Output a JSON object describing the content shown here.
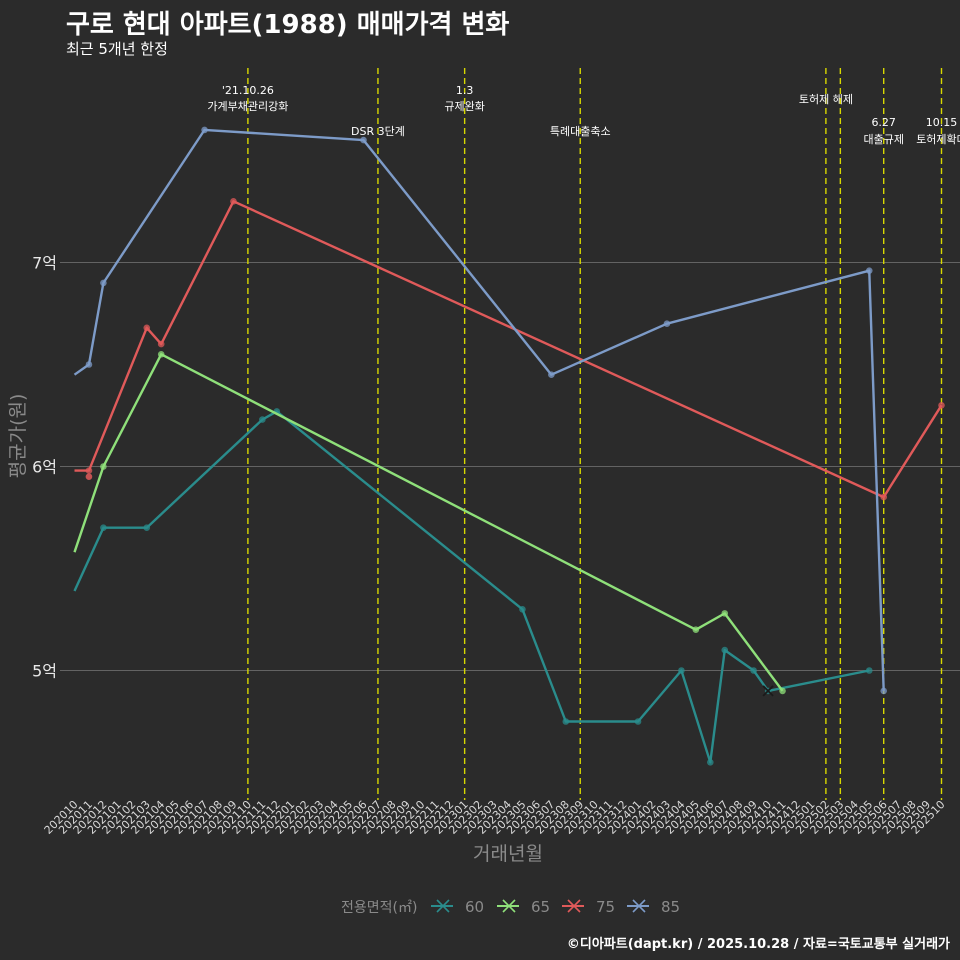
{
  "header": {
    "title": "구로 현대 아파트(1988) 매매가격 변화",
    "subtitle": "최근 5개년 한정"
  },
  "footer": {
    "credit": "©디아파트(dapt.kr) / 2025.10.28 / 자료=국토교통부 실거래가"
  },
  "colors": {
    "background": "#2b2b2b",
    "grid": "#777777",
    "event_line": "#d7d700",
    "s60": "#2a8c8c",
    "s65": "#8fe07a",
    "s75": "#e05a5a",
    "s85": "#7d9bc8"
  },
  "chart_data": {
    "type": "line",
    "title": "구로 현대 아파트(1988) 매매가격 변화",
    "subtitle": "최근 5개년 한정",
    "xlabel": "거래년월",
    "ylabel": "평균가(원)",
    "ylim_eok": [
      4.4,
      7.95
    ],
    "y_ticks": [
      {
        "value": 5,
        "label": "5억"
      },
      {
        "value": 6,
        "label": "6억"
      },
      {
        "value": 7,
        "label": "7억"
      }
    ],
    "x_start_month": "2020-10",
    "x_categories": [
      "202010",
      "202011",
      "202012",
      "202101",
      "202102",
      "202103",
      "202104",
      "202105",
      "202106",
      "202107",
      "202108",
      "202109",
      "202110",
      "202111",
      "202112",
      "202201",
      "202202",
      "202203",
      "202204",
      "202205",
      "202206",
      "202207",
      "202208",
      "202209",
      "202210",
      "202211",
      "202212",
      "202301",
      "202302",
      "202303",
      "202304",
      "202305",
      "202306",
      "202307",
      "202308",
      "202309",
      "202310",
      "202311",
      "202312",
      "202401",
      "202402",
      "202403",
      "202404",
      "202405",
      "202406",
      "202407",
      "202408",
      "202409",
      "202410",
      "202411",
      "202412",
      "202501",
      "202502",
      "202503",
      "202504",
      "202505",
      "202506",
      "202507",
      "202508",
      "202509",
      "202510"
    ],
    "legend_title": "전용면적(㎡)",
    "series": [
      {
        "name": "60",
        "color_key": "s60",
        "points": [
          [
            "202010",
            5.39
          ],
          [
            "202012",
            5.7
          ],
          [
            "202103",
            5.7
          ],
          [
            "202111",
            6.23
          ],
          [
            "202112",
            6.27
          ],
          [
            "202305",
            5.3
          ],
          [
            "202308",
            4.75
          ],
          [
            "202401",
            4.75
          ],
          [
            "202404",
            5.0
          ],
          [
            "202406",
            4.55
          ],
          [
            "202407",
            5.1
          ],
          [
            "202409",
            5.0
          ],
          [
            "202410",
            4.9
          ],
          [
            "202505",
            5.0
          ]
        ]
      },
      {
        "name": "65",
        "color_key": "s65",
        "points": [
          [
            "202010",
            5.58
          ],
          [
            "202012",
            6.0
          ],
          [
            "202104",
            6.55
          ],
          [
            "202405",
            5.2
          ],
          [
            "202407",
            5.28
          ],
          [
            "202411",
            4.9
          ]
        ]
      },
      {
        "name": "75",
        "color_key": "s75",
        "points": [
          [
            "202010",
            5.98
          ],
          [
            "202011",
            5.98
          ],
          [
            "202103",
            6.68
          ],
          [
            "202104",
            6.6
          ],
          [
            "202109",
            7.3
          ],
          [
            "202506",
            5.85
          ],
          [
            "202510",
            6.3
          ]
        ]
      },
      {
        "name": "85",
        "color_key": "s85",
        "points": [
          [
            "202010",
            6.45
          ],
          [
            "202011",
            6.5
          ],
          [
            "202012",
            6.9
          ],
          [
            "202107",
            7.65
          ],
          [
            "202206",
            7.6
          ],
          [
            "202307",
            6.45
          ],
          [
            "202403",
            6.7
          ],
          [
            "202505",
            6.96
          ],
          [
            "202506",
            4.9
          ]
        ]
      }
    ],
    "scatter_points": [
      {
        "series": "75",
        "x": "202011",
        "y": 5.95
      },
      {
        "series": "85",
        "x": "202410",
        "y": 4.9,
        "marker": "x"
      }
    ],
    "events": [
      {
        "x": "202110",
        "lines": [
          "'21.10.26",
          "가계부채관리강화"
        ]
      },
      {
        "x": "202207",
        "lines": [
          "DSR 3단계"
        ]
      },
      {
        "x": "202301",
        "lines": [
          "1.3",
          "규제완화"
        ]
      },
      {
        "x": "202309",
        "lines": [
          "특례대출축소"
        ]
      },
      {
        "x": "202502",
        "lines": [
          "토허제 해제"
        ]
      },
      {
        "x": "202503",
        "lines": []
      },
      {
        "x": "202506",
        "lines": [
          "6.27",
          "대출규제"
        ]
      },
      {
        "x": "202510",
        "lines": [
          "10.15",
          "토허제확대"
        ]
      }
    ]
  }
}
